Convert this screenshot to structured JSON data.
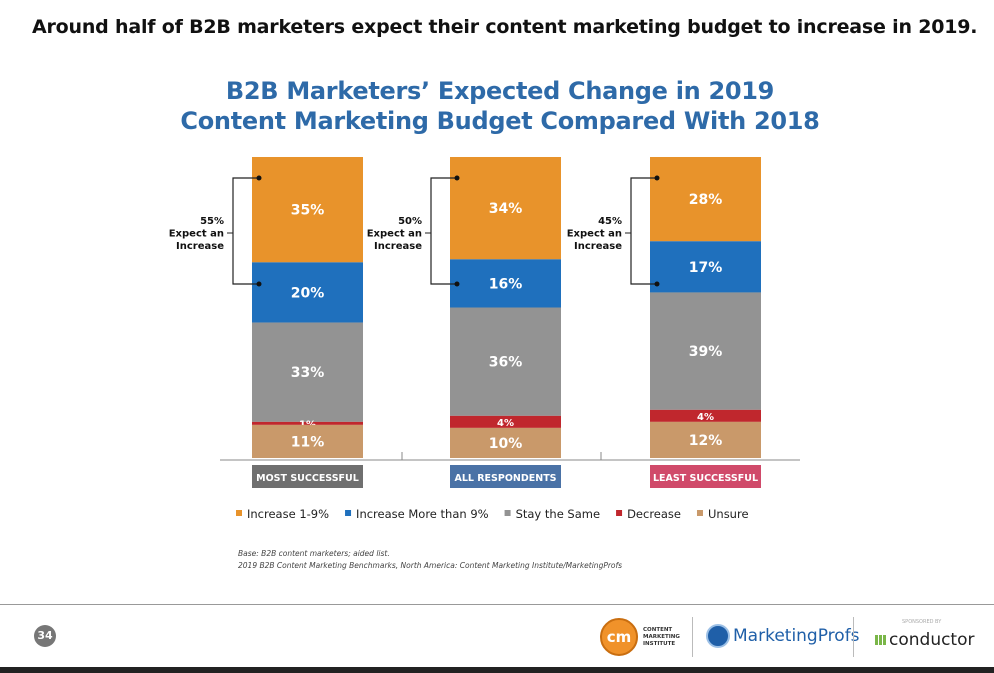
{
  "headline": "Around half of B2B marketers expect their content marketing budget to increase in 2019.",
  "chart_data": {
    "type": "bar",
    "stacked": true,
    "title": [
      "B2B Marketers’ Expected Change in 2019",
      "Content Marketing Budget Compared With 2018"
    ],
    "categories": [
      "MOST SUCCESSFUL",
      "ALL RESPONDENTS",
      "LEAST SUCCESSFUL"
    ],
    "category_colors": [
      "#6f6f6f",
      "#4a72a6",
      "#d04a6a"
    ],
    "series": [
      {
        "name": "Increase 1-9%",
        "color": "#e8932b",
        "values": [
          35,
          34,
          28
        ]
      },
      {
        "name": "Increase More than 9%",
        "color": "#1f70bd",
        "values": [
          20,
          16,
          17
        ]
      },
      {
        "name": "Stay the Same",
        "color": "#939393",
        "values": [
          33,
          36,
          39
        ]
      },
      {
        "name": "Decrease",
        "color": "#c0272d",
        "values": [
          1,
          4,
          4
        ]
      },
      {
        "name": "Unsure",
        "color": "#c9996a",
        "values": [
          11,
          10,
          12
        ]
      }
    ],
    "data_labels": [
      [
        "35%",
        "20%",
        "33%",
        "1%",
        "11%"
      ],
      [
        "34%",
        "16%",
        "36%",
        "4%",
        "10%"
      ],
      [
        "28%",
        "17%",
        "39%",
        "4%",
        "12%"
      ]
    ],
    "annotations": [
      {
        "pct": "55%",
        "text": [
          "Expect an",
          "Increase"
        ]
      },
      {
        "pct": "50%",
        "text": [
          "Expect an",
          "Increase"
        ]
      },
      {
        "pct": "45%",
        "text": [
          "Expect an",
          "Increase"
        ]
      }
    ],
    "ylim": [
      0,
      100
    ],
    "grid": false,
    "legend_position": "bottom"
  },
  "notes": [
    "Base: B2B content marketers; aided list.",
    "2019 B2B Content Marketing Benchmarks, North America: Content Marketing Institute/MarketingProfs"
  ],
  "footer": {
    "page": "34",
    "cmi": [
      "CONTENT",
      "MARKETING",
      "INSTITUTE"
    ],
    "cmi_mark": "cm",
    "mprofs": "MarketingProfs",
    "sponsored": "SPONSORED BY",
    "conductor": "conductor"
  }
}
